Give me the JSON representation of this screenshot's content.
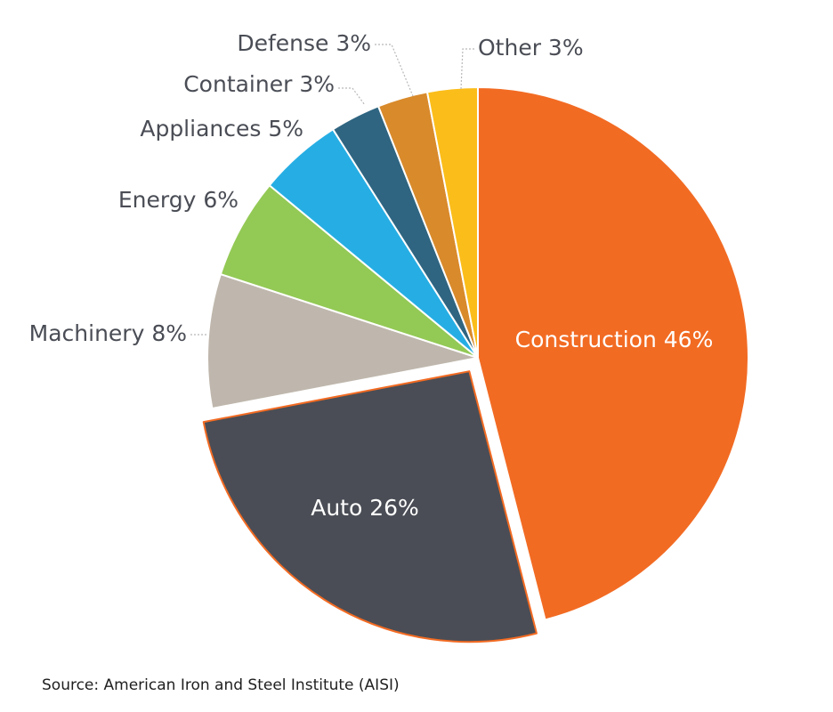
{
  "chart_data": {
    "type": "pie",
    "slices": [
      {
        "label": "Construction 46%",
        "name": "Construction",
        "value": 46,
        "color": "#f26b23",
        "label_color": "#ffffff"
      },
      {
        "label": "Auto 26%",
        "name": "Auto",
        "value": 26,
        "color": "#4a4d55",
        "label_color": "#ffffff"
      },
      {
        "label": "Machinery 8%",
        "name": "Machinery",
        "value": 8,
        "color": "#bfb7ad",
        "label_color": "#4a4d55"
      },
      {
        "label": "Energy 6%",
        "name": "Energy",
        "value": 6,
        "color": "#93c955",
        "label_color": "#4a4d55"
      },
      {
        "label": "Appliances 5%",
        "name": "Appliances",
        "value": 5,
        "color": "#26aee4",
        "label_color": "#4a4d55"
      },
      {
        "label": "Container 3%",
        "name": "Container",
        "value": 3,
        "color": "#2f6581",
        "label_color": "#4a4d55"
      },
      {
        "label": "Defense 3%",
        "name": "Defense",
        "value": 3,
        "color": "#d98a2b",
        "label_color": "#4a4d55"
      },
      {
        "label": "Other 3%",
        "name": "Other",
        "value": 3,
        "color": "#fbbd1a",
        "label_color": "#4a4d55"
      }
    ],
    "exploded": [
      "Auto"
    ],
    "source": "Source: American Iron and Steel Institute (AISI)"
  }
}
